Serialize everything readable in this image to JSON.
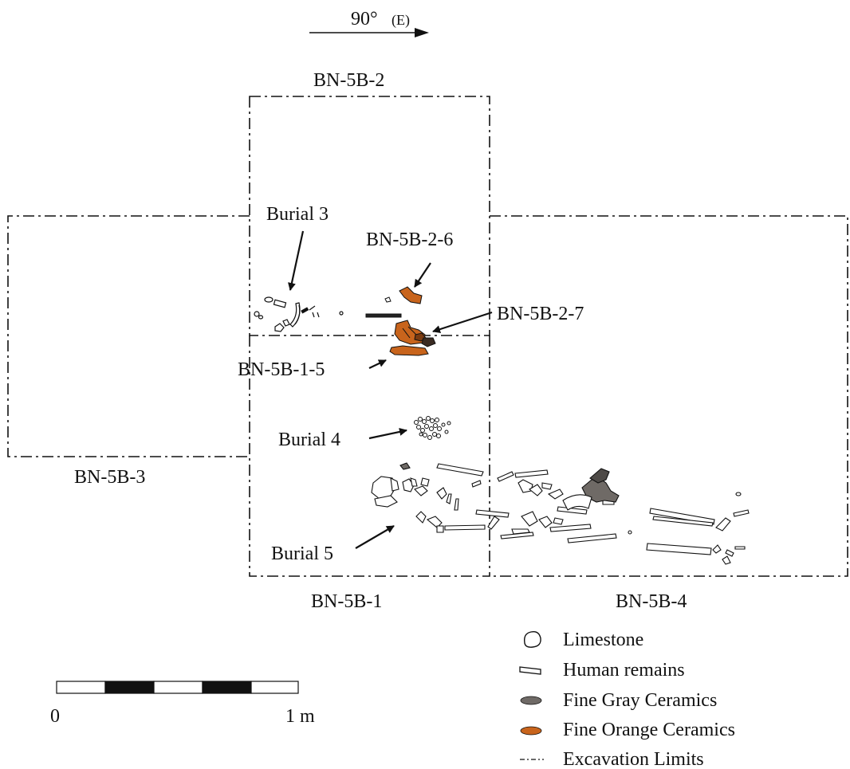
{
  "orientation": {
    "degrees": "90°",
    "direction": "(E)"
  },
  "units": {
    "top": "BN-5B-2",
    "left": "BN-5B-3",
    "bottom": "BN-5B-1",
    "right": "BN-5B-4"
  },
  "callouts": {
    "burial3": "Burial 3",
    "burial4": "Burial 4",
    "burial5": "Burial 5",
    "bn_5b_2_6": "BN-5B-2-6",
    "bn_5b_2_7": "BN-5B-2-7",
    "bn_5b_1_5": "BN-5B-1-5"
  },
  "scale": {
    "start": "0",
    "end": "1 m"
  },
  "legend": [
    {
      "label": "Limestone",
      "symbol": "limestone-icon"
    },
    {
      "label": "Human remains",
      "symbol": "human-remains-icon"
    },
    {
      "label": "Fine Gray Ceramics",
      "symbol": "gray-ceramic-icon",
      "color": "#6f6a66"
    },
    {
      "label": "Fine Orange Ceramics",
      "symbol": "orange-ceramic-icon",
      "color": "#c8641c"
    },
    {
      "label": "Excavation Limits",
      "symbol": "excavation-limit-icon"
    }
  ],
  "colors": {
    "gray_ceramic": "#6f6a66",
    "orange_ceramic": "#c8641c",
    "line": "#111111"
  }
}
